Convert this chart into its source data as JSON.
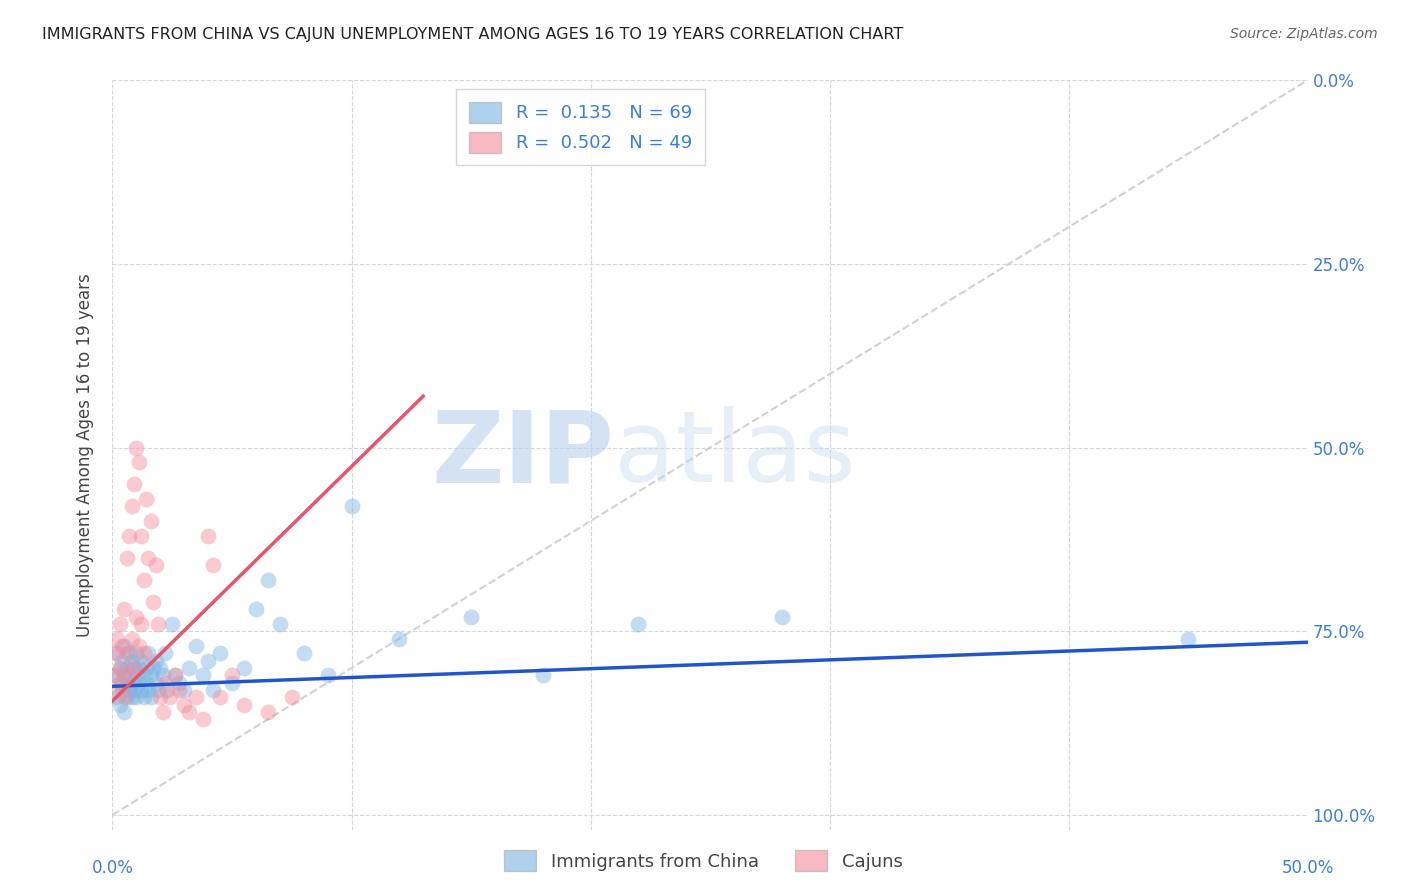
{
  "title": "IMMIGRANTS FROM CHINA VS CAJUN UNEMPLOYMENT AMONG AGES 16 TO 19 YEARS CORRELATION CHART",
  "source": "Source: ZipAtlas.com",
  "ylabel": "Unemployment Among Ages 16 to 19 years",
  "ylabel_right_ticks": [
    "100.0%",
    "75.0%",
    "50.0%",
    "25.0%",
    "0.0%"
  ],
  "ylabel_right_vals": [
    1.0,
    0.75,
    0.5,
    0.25,
    0.0
  ],
  "legend1_label": "R =  0.135   N = 69",
  "legend2_label": "R =  0.502   N = 49",
  "blue_color": "#7ab3e0",
  "pink_color": "#f48b9b",
  "watermark_zip": "ZIP",
  "watermark_atlas": "atlas",
  "diag_line_color": "#cccccc",
  "blue_trend_color": "#2255cc",
  "pink_trend_color": "#e8546a",
  "blue_scatter_x": [
    0.001,
    0.002,
    0.002,
    0.003,
    0.003,
    0.003,
    0.004,
    0.004,
    0.005,
    0.005,
    0.005,
    0.006,
    0.006,
    0.006,
    0.007,
    0.007,
    0.007,
    0.008,
    0.008,
    0.008,
    0.009,
    0.009,
    0.01,
    0.01,
    0.01,
    0.011,
    0.011,
    0.012,
    0.012,
    0.013,
    0.013,
    0.014,
    0.014,
    0.015,
    0.015,
    0.016,
    0.016,
    0.017,
    0.018,
    0.018,
    0.019,
    0.02,
    0.021,
    0.022,
    0.023,
    0.025,
    0.026,
    0.028,
    0.03,
    0.032,
    0.035,
    0.038,
    0.04,
    0.042,
    0.045,
    0.05,
    0.055,
    0.06,
    0.065,
    0.07,
    0.08,
    0.09,
    0.1,
    0.12,
    0.15,
    0.18,
    0.22,
    0.28,
    0.45
  ],
  "blue_scatter_y": [
    0.19,
    0.16,
    0.22,
    0.18,
    0.2,
    0.15,
    0.17,
    0.21,
    0.19,
    0.14,
    0.23,
    0.18,
    0.2,
    0.16,
    0.17,
    0.22,
    0.19,
    0.18,
    0.21,
    0.16,
    0.2,
    0.17,
    0.19,
    0.22,
    0.16,
    0.18,
    0.2,
    0.17,
    0.21,
    0.19,
    0.16,
    0.2,
    0.18,
    0.17,
    0.22,
    0.19,
    0.16,
    0.2,
    0.18,
    0.21,
    0.17,
    0.2,
    0.19,
    0.22,
    0.17,
    0.26,
    0.19,
    0.18,
    0.17,
    0.2,
    0.23,
    0.19,
    0.21,
    0.17,
    0.22,
    0.18,
    0.2,
    0.28,
    0.32,
    0.26,
    0.22,
    0.19,
    0.42,
    0.24,
    0.27,
    0.19,
    0.26,
    0.27,
    0.24
  ],
  "pink_scatter_x": [
    0.001,
    0.001,
    0.002,
    0.002,
    0.003,
    0.003,
    0.004,
    0.004,
    0.005,
    0.005,
    0.006,
    0.006,
    0.007,
    0.007,
    0.008,
    0.008,
    0.009,
    0.009,
    0.01,
    0.01,
    0.011,
    0.011,
    0.012,
    0.012,
    0.013,
    0.013,
    0.014,
    0.015,
    0.016,
    0.017,
    0.018,
    0.019,
    0.02,
    0.021,
    0.022,
    0.024,
    0.026,
    0.028,
    0.03,
    0.032,
    0.035,
    0.038,
    0.04,
    0.042,
    0.045,
    0.05,
    0.055,
    0.065,
    0.075
  ],
  "pink_scatter_y": [
    0.19,
    0.22,
    0.17,
    0.24,
    0.2,
    0.26,
    0.18,
    0.23,
    0.16,
    0.28,
    0.22,
    0.35,
    0.19,
    0.38,
    0.24,
    0.42,
    0.2,
    0.45,
    0.27,
    0.5,
    0.23,
    0.48,
    0.26,
    0.38,
    0.22,
    0.32,
    0.43,
    0.35,
    0.4,
    0.29,
    0.34,
    0.26,
    0.16,
    0.14,
    0.18,
    0.16,
    0.19,
    0.17,
    0.15,
    0.14,
    0.16,
    0.13,
    0.38,
    0.34,
    0.16,
    0.19,
    0.15,
    0.14,
    0.16
  ],
  "xlim": [
    0.0,
    0.5
  ],
  "ylim": [
    -0.02,
    1.0
  ],
  "ygrid_vals": [
    0.0,
    0.25,
    0.5,
    0.75,
    1.0
  ],
  "blue_trend_x": [
    0.0,
    0.5
  ],
  "blue_trend_y": [
    0.175,
    0.235
  ],
  "pink_trend_x": [
    0.0,
    0.13
  ],
  "pink_trend_y": [
    0.155,
    0.57
  ]
}
